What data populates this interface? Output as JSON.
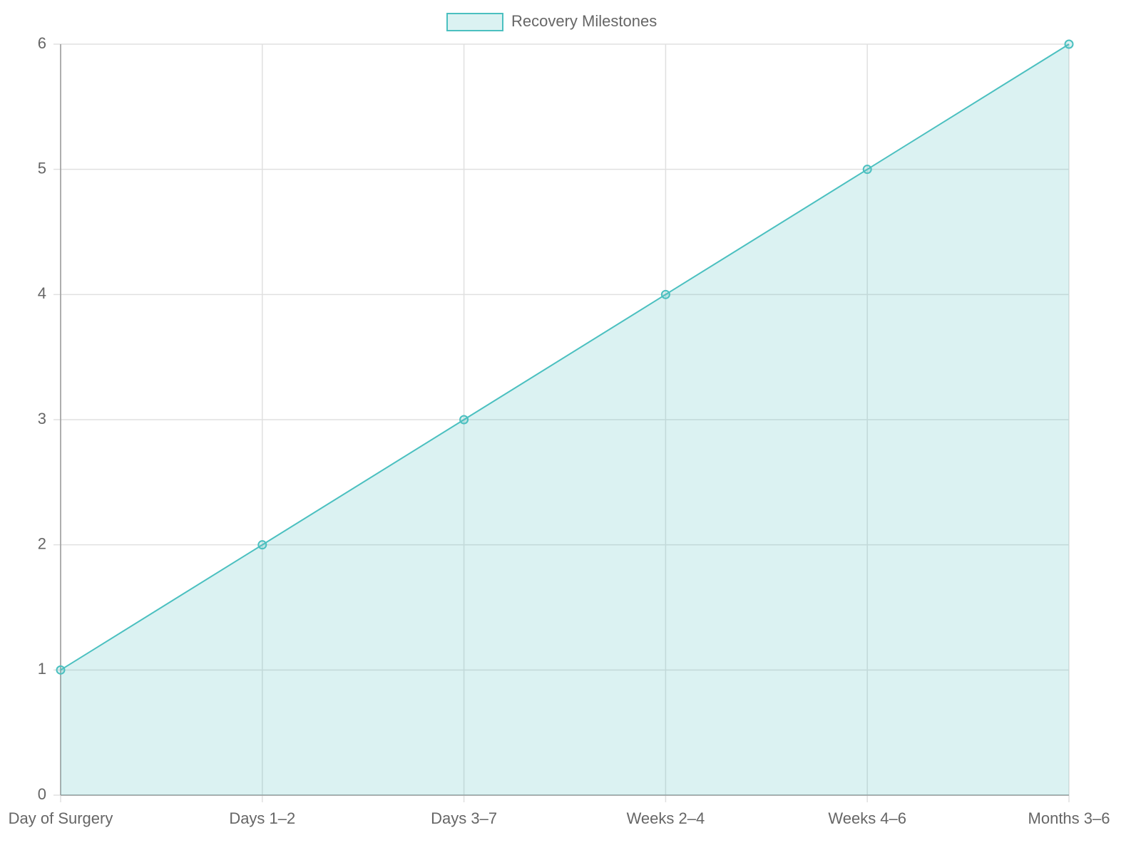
{
  "chart_data": {
    "type": "line",
    "categories": [
      "Day of Surgery",
      "Days 1–2",
      "Days 3–7",
      "Weeks 2–4",
      "Weeks 4–6",
      "Months 3–6"
    ],
    "series": [
      {
        "name": "Recovery Milestones",
        "color": "#4bc0c0",
        "values": [
          1,
          2,
          3,
          4,
          5,
          6
        ]
      }
    ],
    "fill": true,
    "ylim": [
      0,
      6
    ],
    "yticks": [
      0,
      1,
      2,
      3,
      4,
      5,
      6
    ],
    "grid": true,
    "legend": "top"
  }
}
